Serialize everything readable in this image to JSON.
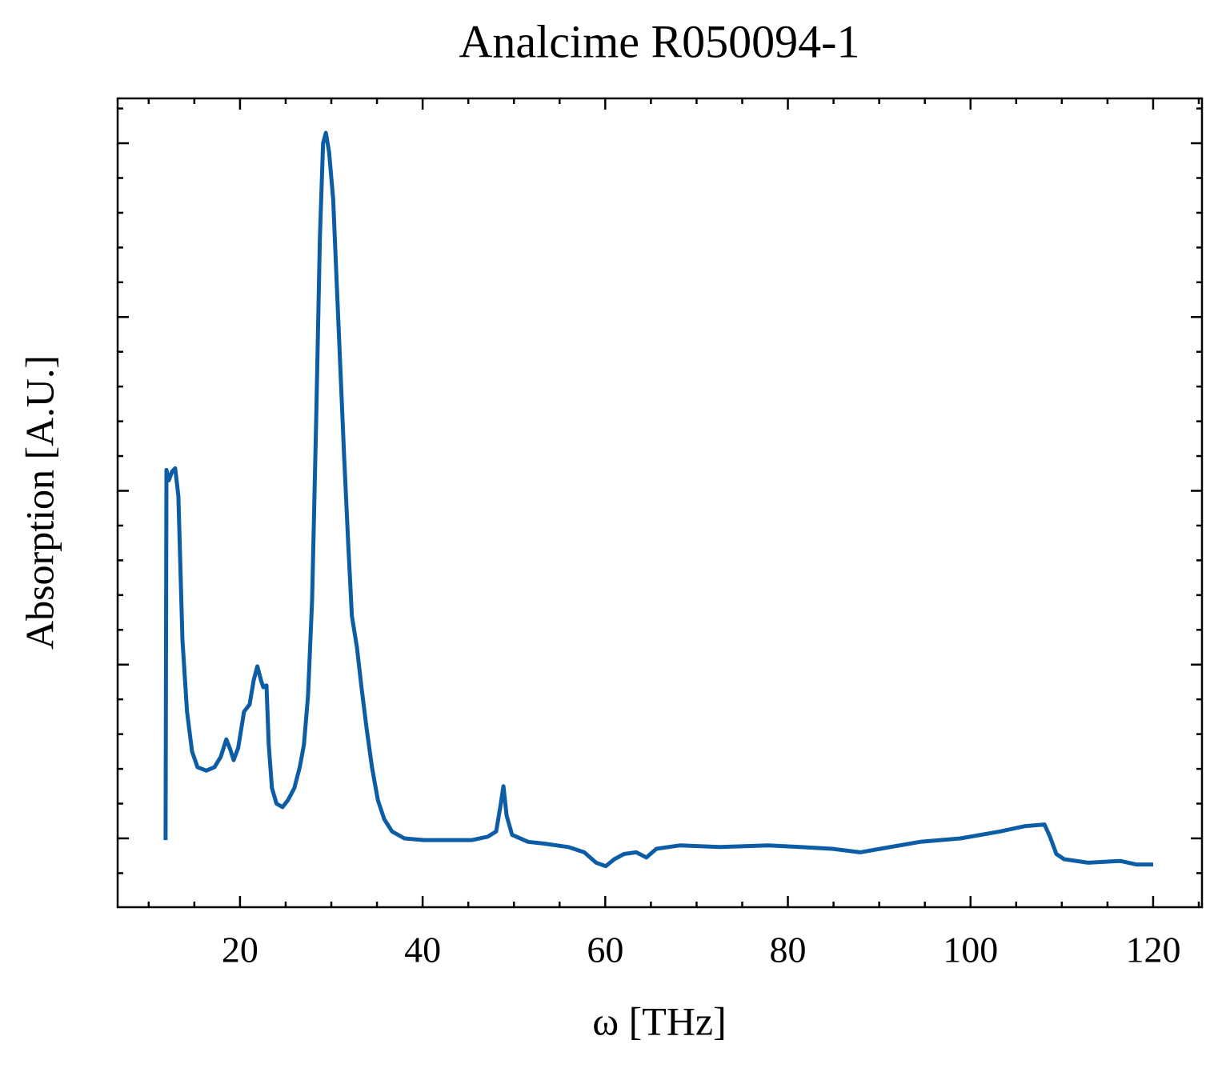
{
  "chart_data": {
    "type": "line",
    "title": "Analcime R050094-1",
    "xlabel": "ω [THz]",
    "ylabel": "Absorption [A.U.]",
    "xlim": [
      6.6,
      125.35
    ],
    "ylim": [
      -0.396,
      4.258
    ],
    "xticks": [
      20,
      40,
      60,
      80,
      100,
      120
    ],
    "xminorticks": [
      10,
      15,
      25,
      30,
      35,
      45,
      50,
      55,
      65,
      70,
      75,
      85,
      90,
      95,
      105,
      110,
      115,
      125
    ],
    "yticks": [
      0,
      1,
      2,
      3,
      4
    ],
    "yminorticks": [
      -0.2,
      0.2,
      0.4,
      0.6,
      0.8,
      1.2,
      1.4,
      1.6,
      1.8,
      2.2,
      2.4,
      2.6,
      2.8,
      3.2,
      3.4,
      3.6,
      3.8,
      4.2
    ],
    "ytick_labels": false,
    "series": [
      {
        "color": "#0C5DA5",
        "x": [
          11.85,
          11.95,
          12.2,
          12.55,
          12.9,
          13.25,
          13.7,
          14.2,
          14.75,
          15.35,
          16.3,
          17.2,
          17.9,
          18.5,
          18.95,
          19.3,
          19.8,
          20.45,
          21.05,
          21.5,
          21.9,
          22.3,
          22.55,
          22.9,
          23.15,
          23.5,
          24.0,
          24.65,
          25.25,
          25.95,
          26.55,
          27.0,
          27.45,
          27.9,
          28.35,
          28.75,
          29.1,
          29.4,
          29.75,
          30.2,
          30.5,
          30.95,
          31.4,
          31.85,
          32.25,
          32.8,
          33.3,
          33.85,
          34.45,
          35.1,
          35.8,
          36.65,
          38.0,
          40.15,
          42.8,
          45.4,
          47.15,
          48.05,
          48.5,
          48.85,
          49.2,
          49.8,
          51.55,
          53.3,
          55.95,
          57.7,
          59.0,
          60.05,
          61.0,
          62.05,
          63.4,
          64.5,
          65.6,
          68.2,
          72.6,
          77.85,
          81.35,
          84.85,
          87.9,
          90.1,
          94.5,
          98.9,
          103.25,
          105.9,
          108.1,
          108.7,
          109.4,
          110.25,
          112.9,
          116.4,
          118.15,
          120.0
        ],
        "values": [
          -0.01,
          2.12,
          2.06,
          2.11,
          2.13,
          1.97,
          1.14,
          0.73,
          0.5,
          0.41,
          0.39,
          0.41,
          0.47,
          0.57,
          0.51,
          0.45,
          0.52,
          0.73,
          0.77,
          0.91,
          0.99,
          0.91,
          0.87,
          0.88,
          0.54,
          0.29,
          0.2,
          0.18,
          0.22,
          0.29,
          0.41,
          0.54,
          0.82,
          1.37,
          2.43,
          3.45,
          4.0,
          4.06,
          3.95,
          3.68,
          3.31,
          2.76,
          2.2,
          1.7,
          1.28,
          1.1,
          0.87,
          0.64,
          0.41,
          0.22,
          0.11,
          0.04,
          0.0,
          -0.01,
          -0.01,
          -0.01,
          0.01,
          0.04,
          0.18,
          0.3,
          0.13,
          0.02,
          -0.02,
          -0.03,
          -0.05,
          -0.08,
          -0.14,
          -0.16,
          -0.12,
          -0.09,
          -0.08,
          -0.11,
          -0.06,
          -0.04,
          -0.05,
          -0.04,
          -0.05,
          -0.06,
          -0.08,
          -0.06,
          -0.02,
          0.0,
          0.04,
          0.07,
          0.08,
          0.01,
          -0.09,
          -0.12,
          -0.14,
          -0.13,
          -0.15,
          -0.15
        ]
      }
    ]
  }
}
